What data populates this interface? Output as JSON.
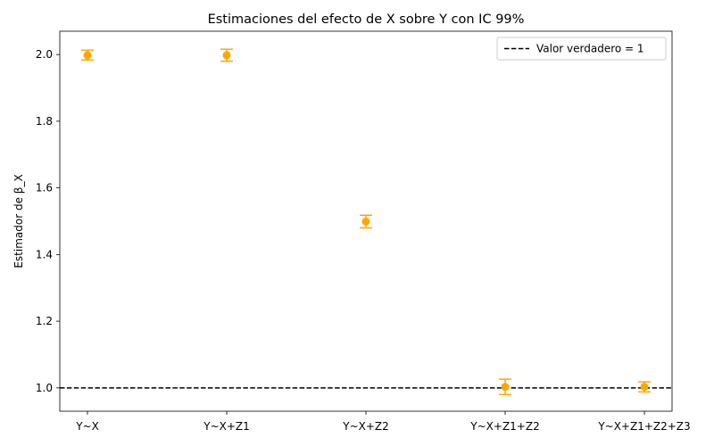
{
  "chart_data": {
    "type": "scatter",
    "title": "Estimaciones del efecto de X sobre Y con IC 99%",
    "xlabel": "",
    "ylabel": "Estimador de β_X",
    "categories": [
      "Y~X",
      "Y~X+Z1",
      "Y~X+Z2",
      "Y~X+Z1+Z2",
      "Y~X+Z1+Z2+Z3"
    ],
    "series": [
      {
        "values": [
          1.998,
          1.998,
          1.499,
          1.003,
          1.003
        ],
        "ci_low": [
          1.984,
          1.98,
          1.48,
          0.98,
          0.988
        ],
        "ci_high": [
          2.013,
          2.016,
          1.518,
          1.026,
          1.018
        ],
        "color": "#ffa500"
      }
    ],
    "reference_line": {
      "y": 1,
      "label": "Valor verdadero = 1",
      "style": "dashed",
      "color": "#000000"
    },
    "ylim": [
      0.93,
      2.07
    ],
    "yticks": [
      1.0,
      1.2,
      1.4,
      1.6,
      1.8,
      2.0
    ],
    "ytick_labels": [
      "1.0",
      "1.2",
      "1.4",
      "1.6",
      "1.8",
      "2.0"
    ],
    "legend_position": "top-right",
    "grid": false
  }
}
